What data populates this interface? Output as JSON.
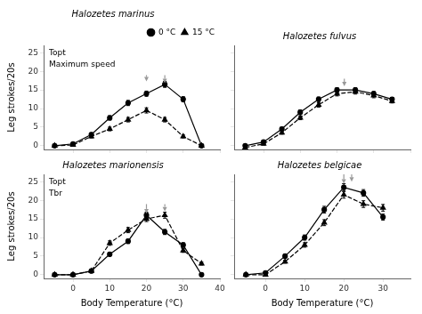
{
  "chart_data": [
    {
      "type": "line",
      "title": "Halozetes marinus",
      "annotations": [
        "Topt",
        "Maximum speed"
      ],
      "ylabel": "Leg strokes/20s",
      "x": [
        -5,
        0,
        5,
        10,
        15,
        20,
        25,
        30,
        35
      ],
      "series": [
        {
          "name": "0 °C",
          "color": "#000000",
          "marker": "circle",
          "line_style": "solid",
          "values": [
            0.0,
            0.5,
            3.0,
            7.5,
            11.5,
            14.0,
            16.5,
            12.5,
            0.0
          ],
          "yerr": [
            0.3,
            0.3,
            0.5,
            0.6,
            0.7,
            0.7,
            0.8,
            0.7,
            0.4
          ]
        },
        {
          "name": "15 °C",
          "color": "#000000",
          "marker": "triangle",
          "line_style": "dashed",
          "values": [
            0.0,
            0.2,
            2.5,
            4.5,
            7.0,
            9.5,
            7.0,
            2.5,
            0.0
          ],
          "yerr": [
            0.2,
            0.3,
            0.4,
            0.5,
            0.6,
            0.7,
            0.6,
            0.4,
            0.2
          ]
        }
      ],
      "arrows": [
        {
          "x": 25,
          "y_base": 19.0,
          "y_tip": 16.8,
          "line_style": "solid",
          "color": "#999999"
        },
        {
          "x": 20,
          "y_base": 19.0,
          "y_tip": 17.3,
          "line_style": "dashed",
          "color": "#999999"
        }
      ],
      "xlim": [
        -8,
        40
      ],
      "ylim": [
        -1,
        27
      ],
      "xticks": [
        0,
        10,
        20,
        30,
        40
      ],
      "yticks": [
        0,
        5,
        10,
        15,
        20,
        25
      ],
      "grid": false,
      "legend": "upper right",
      "tick_labels": "y"
    },
    {
      "type": "line",
      "title": "Halozetes fulvus",
      "annotations": [],
      "x": [
        -5,
        0,
        5,
        10,
        15,
        20,
        25,
        30,
        35
      ],
      "series": [
        {
          "name": "0 °C",
          "color": "#000000",
          "marker": "circle",
          "line_style": "solid",
          "values": [
            0.0,
            1.0,
            4.5,
            9.0,
            12.5,
            15.0,
            15.0,
            14.0,
            12.5
          ],
          "yerr": [
            0.2,
            0.3,
            0.5,
            0.6,
            0.6,
            0.6,
            0.6,
            0.6,
            0.5
          ]
        },
        {
          "name": "15 °C",
          "color": "#000000",
          "marker": "triangle",
          "line_style": "dashed",
          "values": [
            -0.5,
            0.5,
            3.5,
            7.5,
            11.0,
            14.0,
            14.5,
            13.5,
            12.0
          ],
          "yerr": [
            0.2,
            0.3,
            0.4,
            0.5,
            0.6,
            0.6,
            0.6,
            0.6,
            0.5
          ]
        }
      ],
      "arrows": [
        {
          "x": 22,
          "y_base": 18.0,
          "y_tip": 16.0,
          "line_style": "solid",
          "color": "#999999"
        }
      ],
      "xlim": [
        -8,
        40
      ],
      "ylim": [
        -1,
        27
      ],
      "xticks": [
        0,
        10,
        20,
        30,
        40
      ],
      "yticks": [
        0,
        5,
        10,
        15,
        20,
        25
      ],
      "grid": false,
      "tick_labels": false
    },
    {
      "type": "line",
      "title": "Halozetes marionensis",
      "annotations": [
        "Topt",
        "Tbr"
      ],
      "xlabel": "Body Temperature (°C)",
      "ylabel": "Leg strokes/20s",
      "x": [
        -5,
        0,
        5,
        10,
        15,
        20,
        25,
        30,
        35
      ],
      "series": [
        {
          "name": "0 °C",
          "color": "#000000",
          "marker": "circle",
          "line_style": "solid",
          "values": [
            0.0,
            0.0,
            1.0,
            5.5,
            9.0,
            16.0,
            11.5,
            8.0,
            0.0
          ],
          "yerr": [
            0.2,
            0.2,
            0.3,
            0.5,
            0.6,
            0.8,
            0.7,
            0.6,
            0.3
          ]
        },
        {
          "name": "15 °C",
          "color": "#000000",
          "marker": "triangle",
          "line_style": "dashed",
          "values": [
            0.0,
            0.0,
            1.0,
            8.5,
            12.0,
            15.0,
            16.0,
            6.5,
            3.0
          ],
          "yerr": [
            0.2,
            0.2,
            0.3,
            0.6,
            0.7,
            0.7,
            0.8,
            0.5,
            0.4
          ]
        }
      ],
      "arrows": [
        {
          "x": 20,
          "y_base": 19.0,
          "y_tip": 16.5,
          "line_style": "solid",
          "color": "#999999"
        },
        {
          "x": 25,
          "y_base": 19.0,
          "y_tip": 17.0,
          "line_style": "dashed",
          "color": "#999999"
        }
      ],
      "xlim": [
        -8,
        40
      ],
      "ylim": [
        -1,
        27
      ],
      "xticks": [
        0,
        10,
        20,
        30,
        40
      ],
      "yticks": [
        0,
        5,
        10,
        15,
        20,
        25
      ],
      "grid": false
    },
    {
      "type": "line",
      "title": "Halozetes belgicae",
      "annotations": [],
      "xlabel": "Body Temperature (°C)",
      "x": [
        -5,
        0,
        5,
        10,
        15,
        20,
        25,
        30
      ],
      "series": [
        {
          "name": "0 °C",
          "color": "#000000",
          "marker": "circle",
          "line_style": "solid",
          "values": [
            0.0,
            0.5,
            5.0,
            10.0,
            17.5,
            23.5,
            22.0,
            15.5
          ],
          "yerr": [
            0.2,
            0.3,
            0.5,
            0.7,
            0.9,
            1.0,
            0.9,
            0.8
          ]
        },
        {
          "name": "15 °C",
          "color": "#000000",
          "marker": "triangle",
          "line_style": "dashed",
          "values": [
            0.0,
            0.0,
            3.5,
            8.0,
            14.0,
            21.5,
            19.0,
            18.0
          ],
          "yerr": [
            0.2,
            0.2,
            0.4,
            0.6,
            0.8,
            0.9,
            0.9,
            0.9
          ]
        }
      ],
      "arrows": [
        {
          "x": 20,
          "y_base": 27.0,
          "y_tip": 24.5,
          "line_style": "solid",
          "color": "#999999"
        },
        {
          "x": 22,
          "y_base": 27.0,
          "y_tip": 25.0,
          "line_style": "dashed",
          "color": "#999999"
        }
      ],
      "xlim": [
        -8,
        37
      ],
      "ylim": [
        -1,
        27
      ],
      "xticks": [
        0,
        10,
        20,
        30
      ],
      "yticks": [
        0,
        5,
        10,
        15,
        20,
        25
      ],
      "grid": false,
      "tick_labels": "x"
    }
  ]
}
